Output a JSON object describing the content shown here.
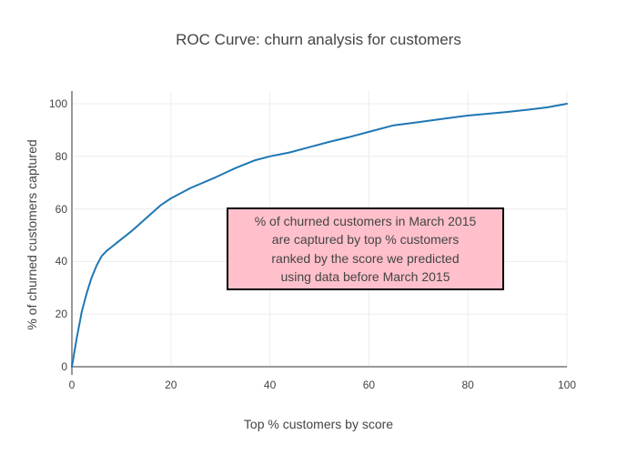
{
  "chart_data": {
    "type": "line",
    "title": "ROC Curve: churn analysis for customers",
    "xlabel": "Top % customers by score",
    "ylabel": "% of churned customers captured",
    "x": [
      0,
      1,
      2,
      3,
      4,
      5,
      6,
      7,
      8,
      10,
      12,
      15,
      18,
      20,
      24,
      29,
      33,
      37,
      40,
      44,
      48,
      52,
      56,
      60,
      65,
      70,
      74,
      78,
      80,
      84,
      88,
      92,
      96,
      100
    ],
    "y": [
      0,
      11,
      21,
      28,
      34,
      38.5,
      42,
      44,
      45.5,
      48.5,
      51.5,
      56.5,
      61.5,
      64,
      68,
      72,
      75.5,
      78.5,
      80,
      81.5,
      83.5,
      85.5,
      87.3,
      89.3,
      91.8,
      93,
      94,
      95,
      95.5,
      96.2,
      96.9,
      97.7,
      98.6,
      100
    ],
    "xlim": [
      0,
      100
    ],
    "ylim": [
      0,
      100
    ],
    "xticks": [
      0,
      20,
      40,
      60,
      80,
      100
    ],
    "yticks": [
      0,
      20,
      40,
      60,
      80,
      100
    ],
    "grid": true,
    "legend": "none",
    "line_color": "#1f77b4"
  },
  "annotation": {
    "lines": [
      "% of churned customers in March 2015",
      "are captured by top % customers",
      "ranked by the score we predicted",
      "using data before March 2015"
    ],
    "bg_color": "#ffc0cb",
    "border_color": "#000000"
  },
  "colors": {
    "background": "#ffffff",
    "text": "#444444",
    "grid": "#ececec",
    "axis": "#999999"
  }
}
